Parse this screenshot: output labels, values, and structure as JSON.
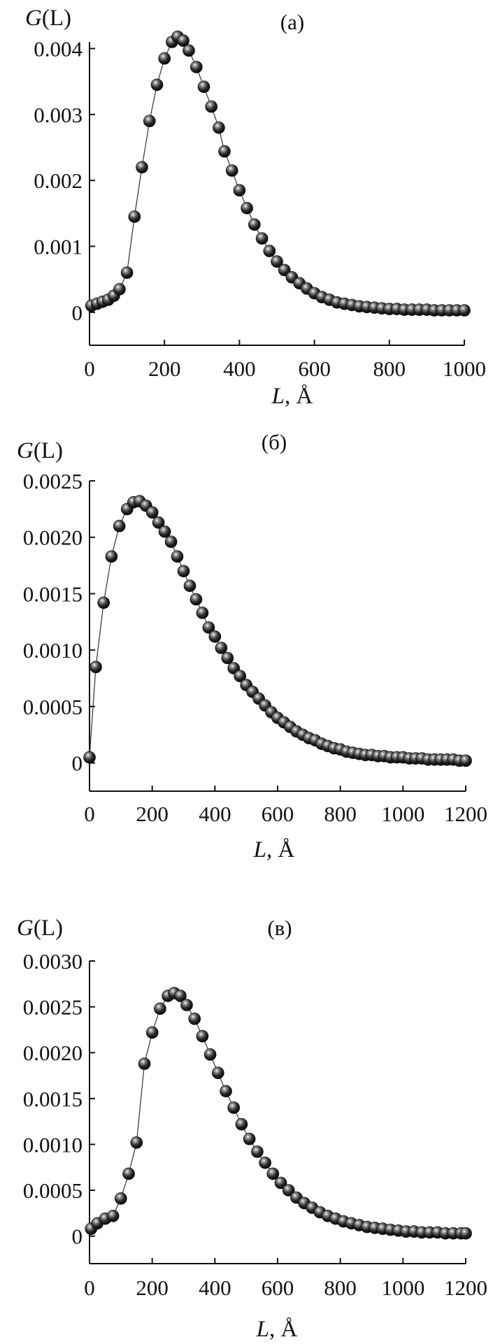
{
  "figure": {
    "y_label_var": "G",
    "y_label_rest": "(L)",
    "x_label_var": "L",
    "x_label_rest": ", Å"
  },
  "chart_data": [
    {
      "type": "scatter",
      "title": "(а)",
      "xlabel": "L, Å",
      "ylabel": "G(L)",
      "xlim": [
        0,
        1000
      ],
      "ylim": [
        -0.0005,
        0.0041
      ],
      "xticks": [
        0,
        200,
        400,
        600,
        800,
        1000
      ],
      "xtick_labels": [
        "0",
        "200",
        "400",
        "600",
        "800",
        "1000"
      ],
      "yticks": [
        0,
        0.001,
        0.002,
        0.003,
        0.004
      ],
      "ytick_labels": [
        "0",
        "0.001",
        "0.002",
        "0.003",
        "0.004"
      ],
      "grid": false,
      "series": [
        {
          "x": [
            5,
            20,
            35,
            50,
            65,
            80,
            100,
            120,
            140,
            160,
            180,
            200,
            220,
            235,
            250,
            265,
            285,
            305,
            325,
            345,
            360,
            380,
            400,
            420,
            440,
            460,
            480,
            500,
            520,
            540,
            560,
            580,
            600,
            620,
            640,
            660,
            680,
            700,
            720,
            740,
            760,
            780,
            800,
            820,
            840,
            860,
            880,
            900,
            920,
            940,
            960,
            980,
            1000
          ],
          "y": [
            0.0001,
            0.00013,
            0.00016,
            0.00019,
            0.00025,
            0.00035,
            0.0006,
            0.00145,
            0.0022,
            0.0029,
            0.00345,
            0.00385,
            0.0041,
            0.00418,
            0.00412,
            0.00397,
            0.00372,
            0.00342,
            0.00312,
            0.0028,
            0.00244,
            0.00215,
            0.00185,
            0.00158,
            0.00133,
            0.00112,
            0.00093,
            0.00077,
            0.00064,
            0.00053,
            0.00044,
            0.00036,
            0.00029,
            0.00023,
            0.00019,
            0.00015,
            0.00013,
            0.00011,
            9e-05,
            8e-05,
            7e-05,
            6e-05,
            5e-05,
            5e-05,
            4e-05,
            4e-05,
            4e-05,
            4e-05,
            3e-05,
            3e-05,
            3e-05,
            3e-05,
            3e-05
          ]
        }
      ]
    },
    {
      "type": "scatter",
      "title": "(б)",
      "xlabel": "L, Å",
      "ylabel": "G(L)",
      "xlim": [
        0,
        1200
      ],
      "ylim": [
        -0.00025,
        0.0025
      ],
      "xticks": [
        0,
        200,
        400,
        600,
        800,
        1000,
        1200
      ],
      "xtick_labels": [
        "0",
        "200",
        "400",
        "600",
        "800",
        "1000",
        "1200"
      ],
      "yticks": [
        0,
        0.0005,
        0.001,
        0.0015,
        0.002,
        0.0025
      ],
      "ytick_labels": [
        "0",
        "0.0005",
        "0.0010",
        "0.0015",
        "0.0020",
        "0.0025"
      ],
      "grid": false,
      "series": [
        {
          "x": [
            0,
            20,
            45,
            70,
            95,
            120,
            140,
            160,
            180,
            200,
            220,
            240,
            260,
            280,
            300,
            320,
            340,
            360,
            380,
            400,
            420,
            440,
            460,
            480,
            500,
            520,
            540,
            560,
            580,
            600,
            620,
            640,
            660,
            680,
            700,
            720,
            740,
            760,
            780,
            800,
            820,
            840,
            860,
            880,
            900,
            920,
            940,
            960,
            980,
            1000,
            1020,
            1040,
            1060,
            1080,
            1100,
            1120,
            1140,
            1160,
            1180,
            1200
          ],
          "y": [
            5e-05,
            0.00085,
            0.00142,
            0.00183,
            0.0021,
            0.00225,
            0.00231,
            0.00232,
            0.00228,
            0.00222,
            0.00213,
            0.00205,
            0.00196,
            0.00183,
            0.0017,
            0.00157,
            0.00145,
            0.00133,
            0.0012,
            0.00112,
            0.00102,
            0.00093,
            0.00084,
            0.00077,
            0.00069,
            0.00063,
            0.00057,
            0.00051,
            0.00045,
            0.0004,
            0.00036,
            0.00032,
            0.00028,
            0.00025,
            0.00022,
            0.0002,
            0.00017,
            0.00015,
            0.00013,
            0.00012,
            0.0001,
            9e-05,
            8e-05,
            7e-05,
            7e-05,
            6e-05,
            6e-05,
            5e-05,
            5e-05,
            5e-05,
            4e-05,
            4e-05,
            4e-05,
            3e-05,
            3e-05,
            3e-05,
            3e-05,
            3e-05,
            2e-05,
            2e-05
          ]
        }
      ]
    },
    {
      "type": "scatter",
      "title": "(в)",
      "xlabel": "L, Å",
      "ylabel": "G(L)",
      "xlim": [
        0,
        1200
      ],
      "ylim": [
        -0.0003,
        0.003
      ],
      "xticks": [
        0,
        200,
        400,
        600,
        800,
        1000,
        1200
      ],
      "xtick_labels": [
        "0",
        "200",
        "400",
        "600",
        "800",
        "1000",
        "1200"
      ],
      "yticks": [
        0,
        0.0005,
        0.001,
        0.0015,
        0.002,
        0.0025,
        0.003
      ],
      "ytick_labels": [
        "0",
        "0.0005",
        "0.0010",
        "0.0015",
        "0.0020",
        "0.0025",
        "0.0030"
      ],
      "grid": false,
      "series": [
        {
          "x": [
            5,
            25,
            50,
            75,
            100,
            125,
            150,
            175,
            200,
            225,
            250,
            270,
            290,
            310,
            335,
            360,
            385,
            410,
            435,
            460,
            485,
            510,
            535,
            560,
            585,
            610,
            635,
            660,
            685,
            710,
            735,
            760,
            785,
            810,
            835,
            860,
            885,
            910,
            935,
            960,
            985,
            1010,
            1035,
            1060,
            1085,
            1110,
            1135,
            1160,
            1185,
            1200
          ],
          "y": [
            8e-05,
            0.00014,
            0.00019,
            0.00022,
            0.00041,
            0.00068,
            0.00102,
            0.00188,
            0.00222,
            0.00248,
            0.00262,
            0.00265,
            0.00262,
            0.00252,
            0.00237,
            0.00218,
            0.00198,
            0.00178,
            0.00158,
            0.0014,
            0.00122,
            0.00106,
            0.00092,
            0.0008,
            0.00068,
            0.00058,
            0.0005,
            0.00042,
            0.00036,
            0.00031,
            0.00026,
            0.00022,
            0.00019,
            0.00016,
            0.00014,
            0.00012,
            0.0001,
            9e-05,
            8e-05,
            7e-05,
            6e-05,
            5e-05,
            5e-05,
            4e-05,
            4e-05,
            4e-05,
            3e-05,
            3e-05,
            3e-05,
            3e-05
          ]
        }
      ]
    }
  ]
}
